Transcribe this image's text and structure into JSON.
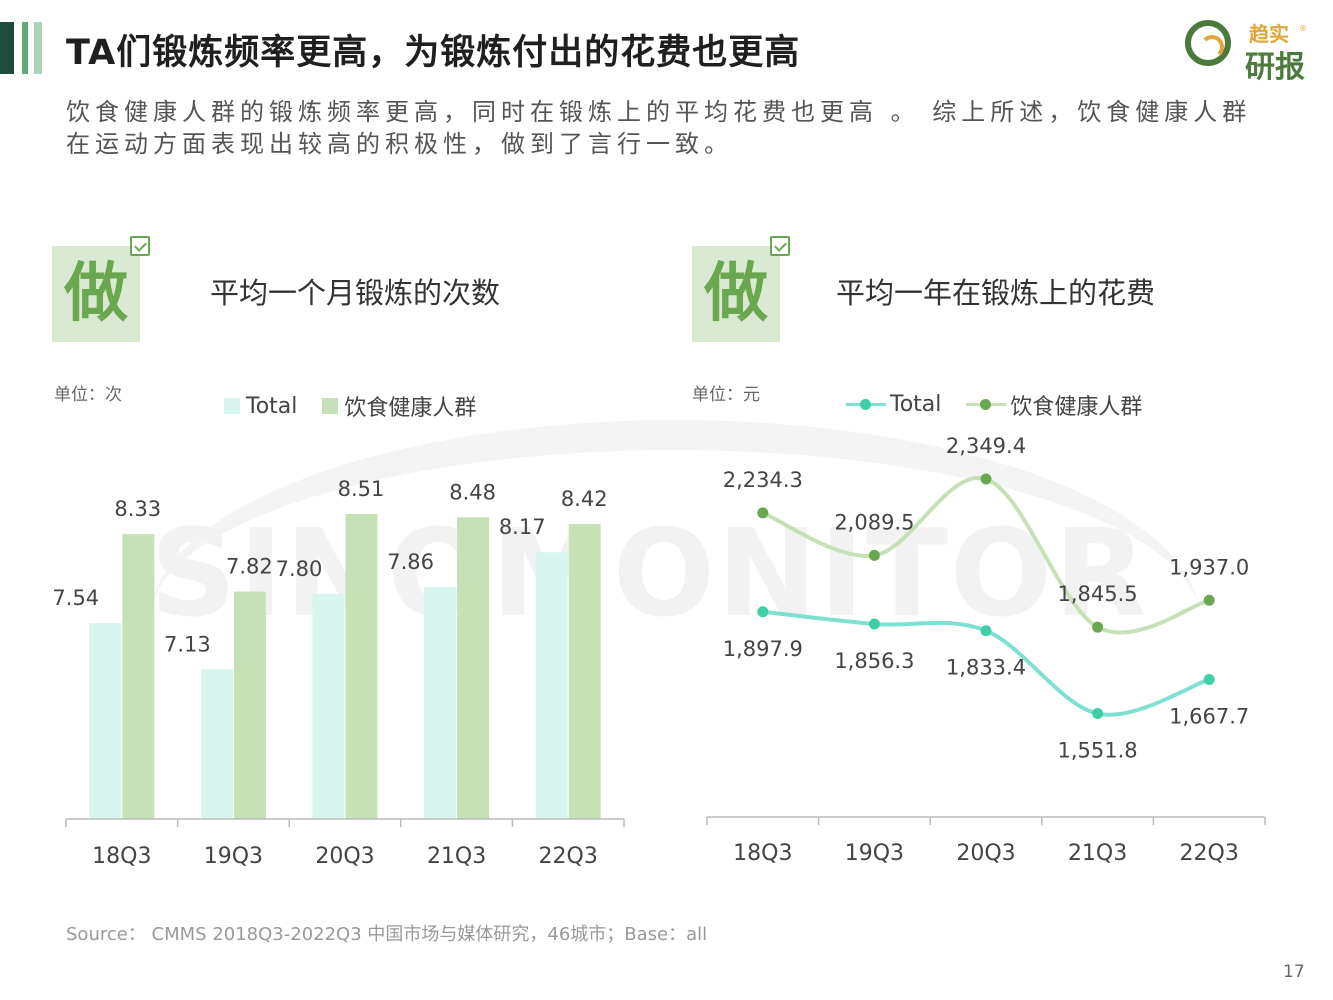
{
  "header": {
    "title": "TA们锻炼频率更高，为锻炼付出的花费也更高",
    "accent_colors": [
      "#1e4d3b",
      "#5fa97c",
      "#a7d4b8"
    ]
  },
  "logo": {
    "line1": "趋实",
    "line2": "研报",
    "reg": "®"
  },
  "intro": "饮食健康人群的锻炼频率更高，同时在锻炼上的平均花费也更高 。 综上所述，饮食健康人群在运动方面表现出较高的积极性，做到了言行一致。",
  "watermark": "SINOMONITOR",
  "badges": {
    "char": "做",
    "icon": "clipboard-check-icon"
  },
  "colors": {
    "total": "#d8f4ef",
    "healthy": "#c6e0b8",
    "total_line": "#7ee0d1",
    "healthy_line": "#c6e0b8",
    "total_dot": "#3ecfa7",
    "healthy_dot": "#6aa84f"
  },
  "chart_data": [
    {
      "type": "bar",
      "title": "平均一个月锻炼的次数",
      "unit": "单位：次",
      "categories": [
        "18Q3",
        "19Q3",
        "20Q3",
        "21Q3",
        "22Q3"
      ],
      "series": [
        {
          "name": "Total",
          "values": [
            7.54,
            7.13,
            7.8,
            7.86,
            8.17
          ],
          "labels": [
            "7.54",
            "7.13",
            "7.80",
            "7.86",
            "8.17"
          ]
        },
        {
          "name": "饮食健康人群",
          "values": [
            8.33,
            7.82,
            8.51,
            8.48,
            8.42
          ],
          "labels": [
            "8.33",
            "7.82",
            "8.51",
            "8.48",
            "8.42"
          ]
        }
      ],
      "ylim": [
        5.8,
        8.9
      ],
      "legend": "top",
      "grid": false
    },
    {
      "type": "line",
      "title": "平均一年在锻炼上的花费",
      "unit": "单位：元",
      "categories": [
        "18Q3",
        "19Q3",
        "20Q3",
        "21Q3",
        "22Q3"
      ],
      "series": [
        {
          "name": "Total",
          "values": [
            1897.9,
            1856.3,
            1833.4,
            1551.8,
            1667.7
          ],
          "labels": [
            "1,897.9",
            "1,856.3",
            "1,833.4",
            "1,551.8",
            "1,667.7"
          ]
        },
        {
          "name": "饮食健康人群",
          "values": [
            2234.3,
            2089.5,
            2349.4,
            1845.5,
            1937.0
          ],
          "labels": [
            "2,234.3",
            "2,089.5",
            "2,349.4",
            "1,845.5",
            "1,937.0"
          ]
        }
      ],
      "ylim": [
        1200,
        2550
      ],
      "legend": "top",
      "grid": false
    }
  ],
  "source": "Source： CMMS 2018Q3-2022Q3 中国市场与媒体研究，46城市；Base：all",
  "page_number": "17"
}
